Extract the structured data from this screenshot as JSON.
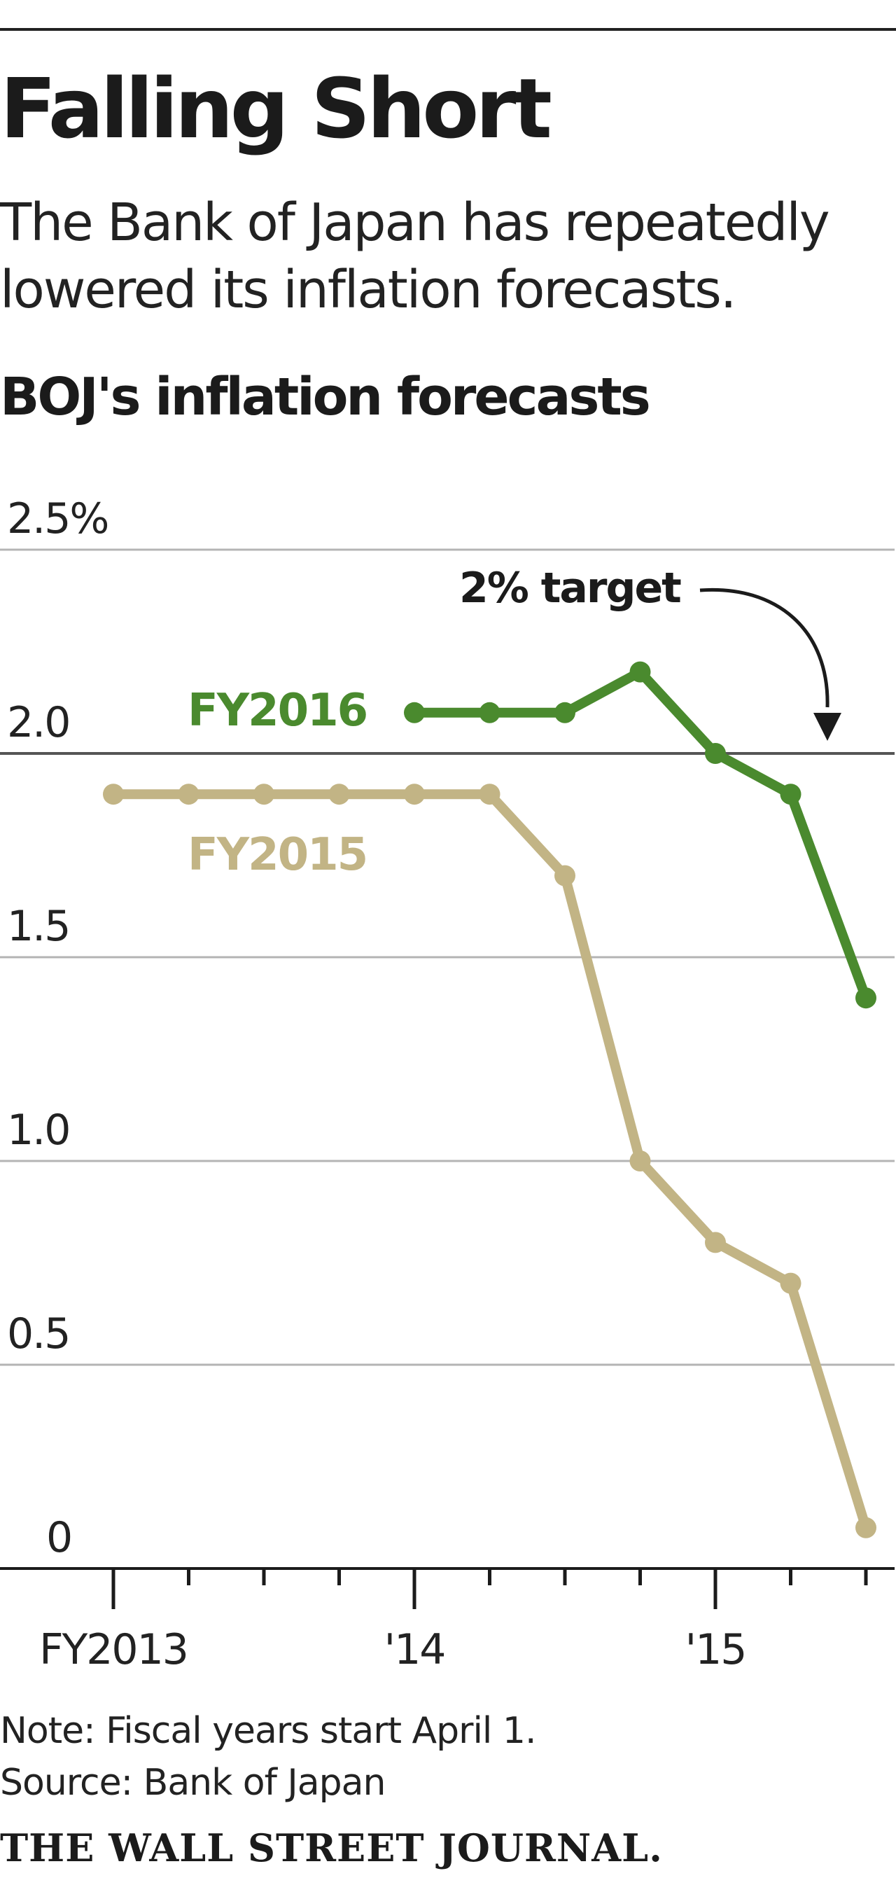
{
  "header": {
    "title": "Falling Short",
    "subtitle": "The Bank of Japan has repeatedly lowered its inflation forecasts."
  },
  "chart_data": {
    "type": "line",
    "title": "BOJ's inflation forecasts",
    "xlabel": "",
    "ylabel": "",
    "y_ticks": [
      "2.5%",
      "2.0",
      "1.5",
      "1.0",
      "0.5",
      "0"
    ],
    "ylim": [
      0,
      2.5
    ],
    "x_tick_labels": [
      "FY2013",
      "'14",
      "'15"
    ],
    "grid": true,
    "x": [
      1,
      2,
      3,
      4,
      5,
      6,
      7,
      8,
      9,
      10,
      11
    ],
    "series": [
      {
        "name": "FY2016",
        "color": "#4a8a2e",
        "values": [
          null,
          null,
          null,
          null,
          2.1,
          2.1,
          2.1,
          2.2,
          2.0,
          1.9,
          1.4
        ]
      },
      {
        "name": "FY2015",
        "color": "#c2b485",
        "values": [
          1.9,
          1.9,
          1.9,
          1.9,
          1.9,
          1.9,
          1.7,
          1.0,
          0.8,
          0.7,
          0.1
        ]
      }
    ],
    "reference_line": {
      "value": 2.0,
      "label": "2% target"
    }
  },
  "footer": {
    "note": "Note: Fiscal years start April 1.",
    "source": "Source: Bank of Japan",
    "brand": "THE WALL STREET JOURNAL."
  }
}
